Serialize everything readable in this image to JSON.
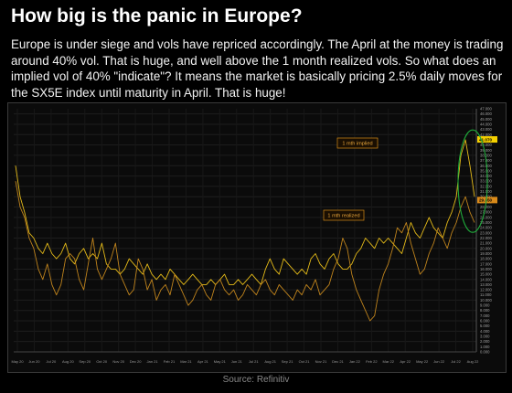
{
  "header": {
    "title": "How big is the panic in Europe?",
    "body": "Europe is under siege and vols have repriced accordingly. The April at the money is trading around 40% vol. That is huge, and well above the 1 month realized vols. So what does an implied vol of 40% \"indicate\"? It means the market is basically pricing 2.5% daily moves for the SX5E index until maturity in April. That is huge!"
  },
  "footer": {
    "source": "Source: Refinitiv"
  },
  "colors": {
    "implied": "#f0c419",
    "realized": "#c98a1e",
    "highlight_ellipse": "#1fa83a",
    "label_border": "#d48a18",
    "label_text": "#e8a53a",
    "implied_tag": "#f5d000",
    "realized_tag": "#d98a1a"
  },
  "chart_data": {
    "type": "line",
    "title": "",
    "xlabel": "",
    "ylabel": "",
    "ylim": [
      0,
      47
    ],
    "y_ticks": [
      0,
      1,
      2,
      3,
      4,
      5,
      6,
      7,
      8,
      9,
      10,
      11,
      12,
      13,
      14,
      15,
      16,
      17,
      18,
      19,
      20,
      21,
      22,
      23,
      24,
      25,
      26,
      27,
      28,
      29,
      30,
      31,
      32,
      33,
      34,
      35,
      36,
      37,
      38,
      39,
      40,
      41,
      42,
      43,
      44,
      45,
      46,
      47
    ],
    "x_labels": [
      "May 20",
      "Jun 20",
      "Jul 20",
      "Aug 20",
      "Sep 20",
      "Oct 20",
      "Nov 20",
      "Dec 20",
      "Jan 21",
      "Feb 21",
      "Mar 21",
      "Apr 21",
      "May 21",
      "Jun 21",
      "Jul 21",
      "Aug 21",
      "Sep 21",
      "Oct 21",
      "Nov 21",
      "Dec 21",
      "Jan 22",
      "Feb 22",
      "Mar 22",
      "Apr 22",
      "May 22",
      "Jun 22",
      "Jul 22",
      "Aug 22"
    ],
    "series": [
      {
        "name": "",
        "role": "implied",
        "values": [
          36,
          30,
          27,
          23,
          22,
          20,
          19,
          21,
          19,
          18,
          19,
          21,
          18,
          17,
          19,
          20,
          18,
          19,
          18,
          21,
          17,
          16,
          16,
          15,
          16,
          18,
          17,
          16,
          15,
          17,
          15,
          14,
          15,
          14,
          16,
          15,
          14,
          13,
          14,
          15,
          14,
          13,
          13,
          14,
          13,
          14,
          15,
          13,
          13,
          14,
          13,
          14,
          15,
          14,
          13,
          16,
          18,
          16,
          15,
          18,
          17,
          16,
          15,
          16,
          15,
          18,
          19,
          17,
          16,
          18,
          19,
          17,
          16,
          16,
          17,
          19,
          20,
          22,
          21,
          20,
          22,
          21,
          22,
          21,
          20,
          19,
          22,
          25,
          23,
          22,
          24,
          26,
          24,
          23,
          22,
          25,
          27,
          30,
          38,
          41,
          36,
          30
        ]
      },
      {
        "name": "",
        "role": "realized",
        "values": [
          33,
          28,
          26,
          22,
          20,
          16,
          14,
          17,
          13,
          11,
          13,
          18,
          19,
          18,
          14,
          12,
          17,
          22,
          16,
          14,
          16,
          18,
          21,
          15,
          13,
          11,
          12,
          18,
          16,
          12,
          14,
          10,
          12,
          13,
          11,
          15,
          13,
          11,
          9,
          10,
          12,
          13,
          11,
          10,
          13,
          14,
          12,
          11,
          12,
          10,
          11,
          13,
          12,
          11,
          13,
          14,
          12,
          11,
          13,
          12,
          11,
          10,
          12,
          11,
          13,
          12,
          14,
          11,
          12,
          13,
          16,
          18,
          22,
          20,
          15,
          12,
          10,
          8,
          6,
          7,
          12,
          15,
          17,
          20,
          24,
          23,
          25,
          21,
          18,
          15,
          16,
          19,
          21,
          24,
          22,
          20,
          23,
          25,
          28,
          30,
          27,
          25
        ]
      }
    ],
    "current_values": {
      "implied": "41.070",
      "realized": "29.350"
    },
    "annotations": [
      {
        "text": "1 mth implied",
        "points_to": "implied"
      },
      {
        "text": "1 mth realized",
        "points_to": "realized"
      }
    ]
  }
}
